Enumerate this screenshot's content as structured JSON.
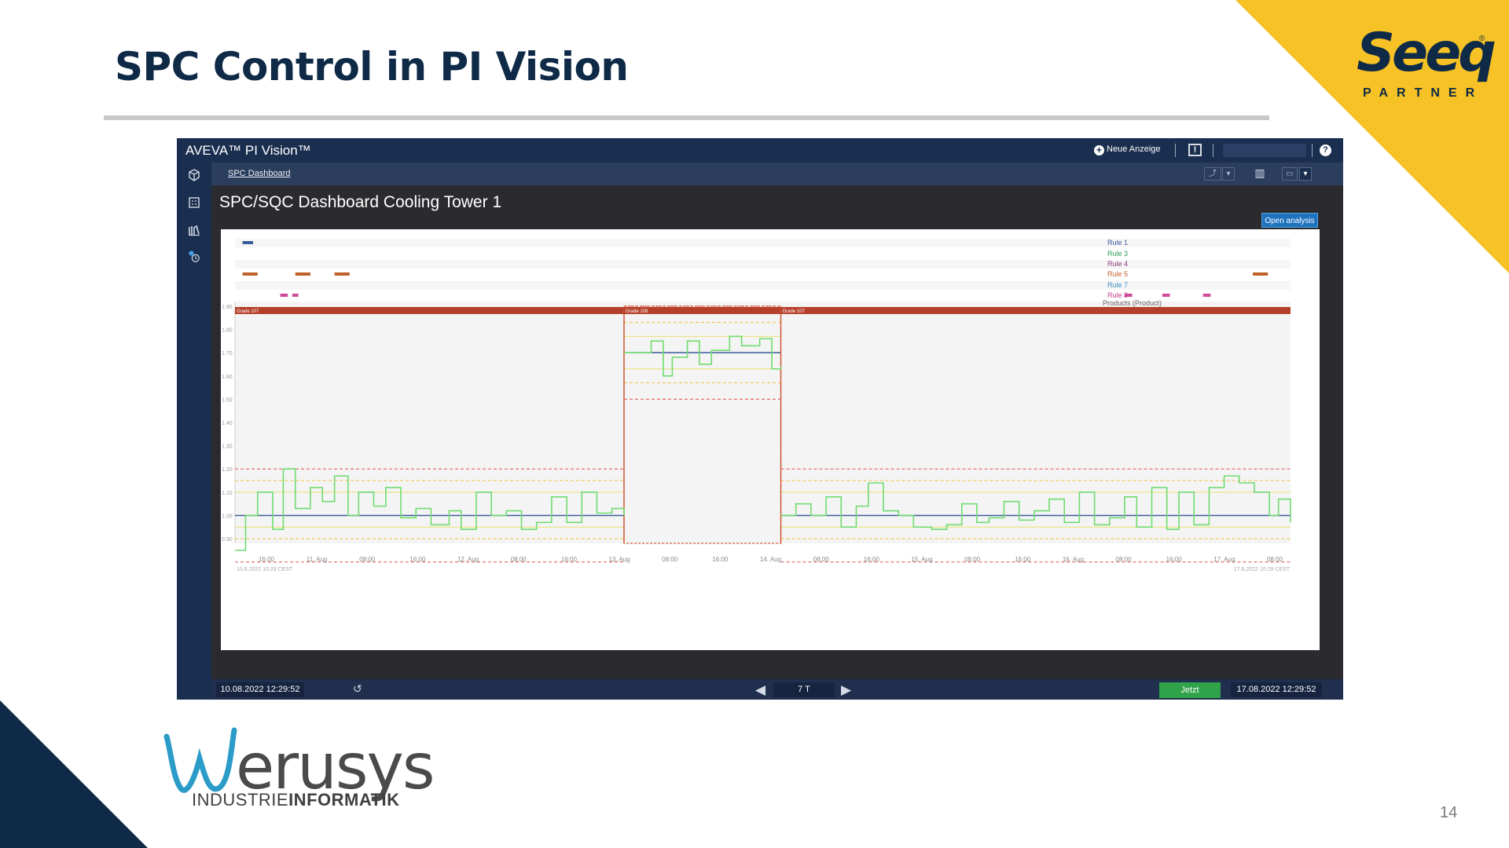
{
  "slide": {
    "title": "SPC Control in PI Vision",
    "page_number": "14",
    "seeq": {
      "name": "Seeq",
      "registered": "®",
      "tagline": "PARTNER"
    },
    "werusys": {
      "name": "werusys",
      "sub_left": "INDUSTRIE",
      "sub_right": "INFORMATIK"
    },
    "colors": {
      "navy": "#0e2a47",
      "yellow": "#f6c225"
    }
  },
  "pi_vision": {
    "brand": "AVEVA™ PI Vision™",
    "new_display_label": "Neue Anzeige",
    "alert_icon_label": "!",
    "help_icon_label": "?",
    "breadcrumb": "SPC Dashboard",
    "display_title": "SPC/SQC Dashboard Cooling Tower 1",
    "open_analysis_label": "Open analysis",
    "sidebar_icons": [
      "cube-icon",
      "calculator-icon",
      "library-icon",
      "clock-settings-icon"
    ],
    "toolbar": {
      "trend_label": "⤴",
      "dropdown_label": "▾",
      "columns_label": "▥",
      "save_label": "▭"
    },
    "time_bar": {
      "start": "10.08.2022 12:29:52",
      "end": "17.08.2022 12:29:52",
      "duration": "7 T",
      "now_label": "Jetzt",
      "reload_icon": "↺",
      "prev_icon": "◀",
      "next_icon": "▶"
    }
  },
  "chart_data": {
    "type": "line",
    "rule_legend": [
      {
        "name": "Rule 1",
        "color": "#3a5a9a"
      },
      {
        "name": "Rule 3",
        "color": "#2e9e5a"
      },
      {
        "name": "Rule 4",
        "color": "#8a3a7a"
      },
      {
        "name": "Rule 5",
        "color": "#c0602a"
      },
      {
        "name": "Rule 7",
        "color": "#3a8ac0"
      },
      {
        "name": "Rule 8",
        "color": "#c03a8a"
      }
    ],
    "products_label": "Products (Product)",
    "grade_segments": [
      {
        "label": "Grade 107",
        "start": 0.0,
        "end": 2.58
      },
      {
        "label": "Grade 108",
        "start": 2.58,
        "end": 3.62
      },
      {
        "label": "Grade 107",
        "start": 3.62,
        "end": 7.0
      }
    ],
    "rule_events": {
      "Rule 1": [
        [
          0.05,
          0.12
        ]
      ],
      "Rule 5": [
        [
          0.05,
          0.15
        ],
        [
          0.4,
          0.5
        ],
        [
          0.66,
          0.76
        ],
        [
          6.75,
          6.85
        ]
      ],
      "Rule 8": [
        [
          0.3,
          0.35
        ],
        [
          0.38,
          0.42
        ],
        [
          5.9,
          5.95
        ],
        [
          6.15,
          6.2
        ],
        [
          6.42,
          6.47
        ]
      ]
    },
    "y_ticks": [
      "0.90",
      "1.00",
      "1.10",
      "1.20",
      "1.30",
      "1.40",
      "1.50",
      "1.60",
      "1.70",
      "1.80",
      "1.90"
    ],
    "ylim": [
      0.88,
      1.92
    ],
    "x_ticks": [
      "16:00",
      "11. Aug",
      "08:00",
      "16:00",
      "12. Aug",
      "08:00",
      "16:00",
      "13. Aug",
      "08:00",
      "16:00",
      "14. Aug",
      "08:00",
      "16:00",
      "15. Aug",
      "08:00",
      "16:00",
      "16. Aug",
      "08:00",
      "16:00",
      "17. Aug",
      "08:00"
    ],
    "x_start_label": "10.8.2022 10:29 CEST",
    "x_end_label": "17.8.2022 10:29 CEST",
    "limits": {
      "grade_107": {
        "center": 1.0,
        "ucl": 1.2,
        "lcl": 0.8,
        "u2": 1.15,
        "l2": 0.9,
        "u1": 1.1,
        "l1": 0.95
      },
      "grade_108": {
        "center": 1.7,
        "ucl": 1.9,
        "lcl": 1.5,
        "u2": 1.83,
        "l2": 1.57,
        "u1": 1.77,
        "l1": 1.63
      }
    },
    "series": [
      {
        "name": "",
        "x": [
          0.0,
          0.07,
          0.15,
          0.25,
          0.32,
          0.4,
          0.5,
          0.58,
          0.66,
          0.75,
          0.82,
          0.92,
          1.0,
          1.1,
          1.2,
          1.3,
          1.42,
          1.5,
          1.6,
          1.7,
          1.8,
          1.9,
          2.0,
          2.1,
          2.2,
          2.3,
          2.4,
          2.5,
          2.58
        ],
        "y": [
          0.85,
          1.0,
          1.1,
          0.94,
          1.2,
          1.03,
          1.12,
          1.06,
          1.17,
          1.0,
          1.1,
          1.04,
          1.12,
          0.99,
          1.03,
          0.96,
          1.02,
          0.94,
          1.1,
          1.0,
          1.02,
          0.94,
          0.97,
          1.08,
          0.97,
          1.1,
          1.01,
          1.03,
          1.0
        ]
      },
      {
        "name": "",
        "x": [
          2.58,
          2.68,
          2.76,
          2.84,
          2.9,
          3.0,
          3.08,
          3.16,
          3.28,
          3.36,
          3.48,
          3.56,
          3.62
        ],
        "y": [
          1.7,
          1.7,
          1.75,
          1.6,
          1.68,
          1.75,
          1.65,
          1.71,
          1.77,
          1.73,
          1.76,
          1.63,
          1.64
        ]
      },
      {
        "name": "",
        "x": [
          3.62,
          3.72,
          3.82,
          3.92,
          4.02,
          4.12,
          4.2,
          4.3,
          4.4,
          4.5,
          4.62,
          4.72,
          4.82,
          4.92,
          5.0,
          5.1,
          5.2,
          5.3,
          5.4,
          5.5,
          5.6,
          5.7,
          5.8,
          5.9,
          5.98,
          6.08,
          6.18,
          6.26,
          6.36,
          6.46,
          6.56,
          6.66,
          6.76,
          6.86,
          6.92,
          7.0
        ],
        "y": [
          1.0,
          1.05,
          1.0,
          1.08,
          0.95,
          1.04,
          1.14,
          1.02,
          1.0,
          0.95,
          0.94,
          0.96,
          1.05,
          0.97,
          0.99,
          1.06,
          0.98,
          1.02,
          1.07,
          0.97,
          1.1,
          0.96,
          0.99,
          1.08,
          0.95,
          1.12,
          0.94,
          1.1,
          0.96,
          1.12,
          1.17,
          1.14,
          1.1,
          1.0,
          1.07,
          0.97
        ]
      }
    ]
  }
}
